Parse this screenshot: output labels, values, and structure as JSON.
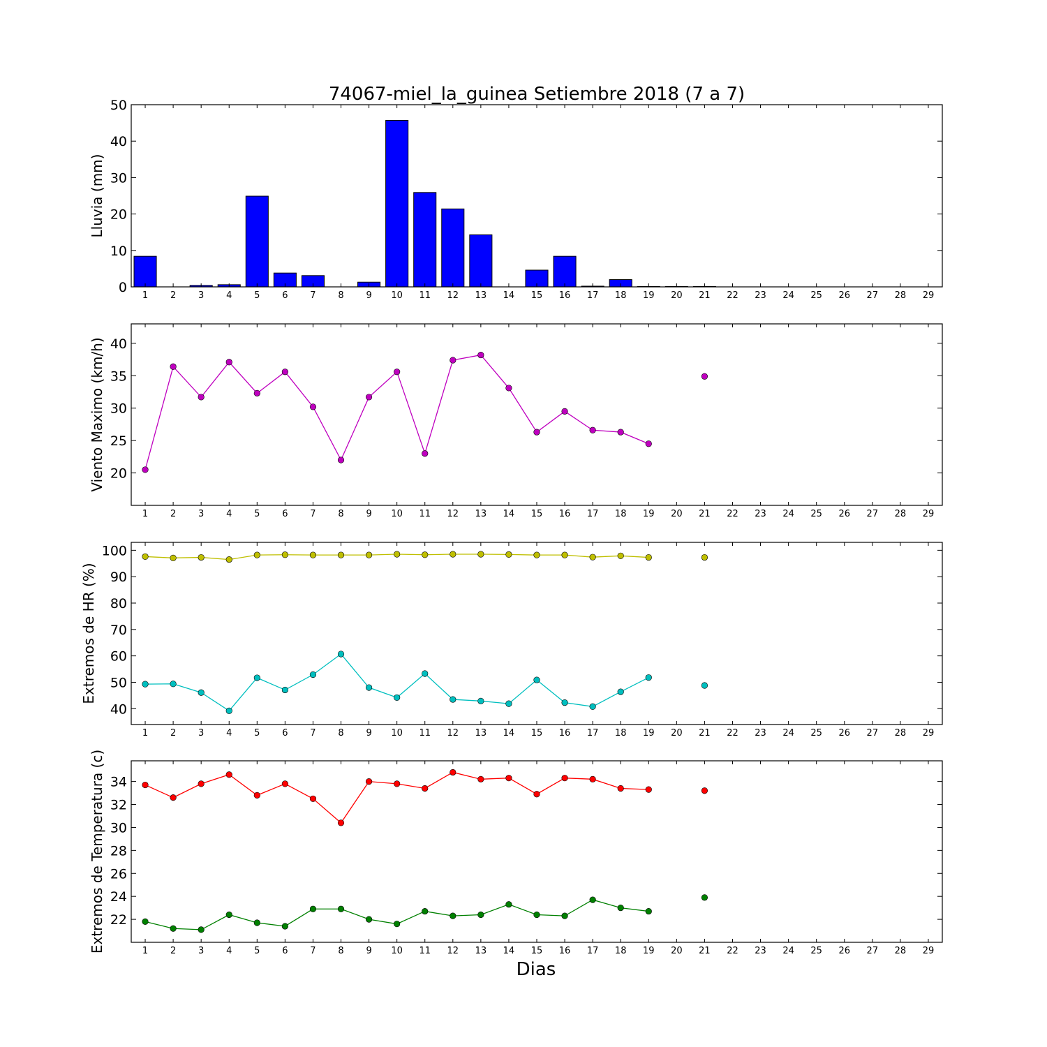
{
  "title": "74067-miel_la_guinea Setiembre 2018  (7 a 7)",
  "xlabel": "Dias",
  "chart_data": [
    {
      "type": "bar",
      "ylabel": "Lluvia (mm)",
      "ylim": [
        0,
        50
      ],
      "yticks": [
        0,
        10,
        20,
        30,
        40,
        50
      ],
      "xlim": [
        0.5,
        29.5
      ],
      "xticks": [
        1,
        2,
        3,
        4,
        5,
        6,
        7,
        8,
        9,
        10,
        11,
        12,
        13,
        14,
        15,
        16,
        17,
        18,
        19,
        20,
        21,
        22,
        23,
        24,
        25,
        26,
        27,
        28,
        29
      ],
      "x": [
        1,
        2,
        3,
        4,
        5,
        6,
        7,
        8,
        9,
        10,
        11,
        12,
        13,
        14,
        15,
        16,
        17,
        18,
        19,
        20,
        21
      ],
      "values": [
        8.4,
        0.0,
        0.4,
        0.6,
        24.9,
        3.8,
        3.1,
        0.0,
        1.3,
        45.7,
        25.9,
        21.4,
        14.3,
        0.0,
        4.6,
        8.4,
        0.2,
        2.0,
        0.1,
        0.1,
        0.1
      ],
      "color": "#0000ff",
      "grid": false
    },
    {
      "type": "line",
      "ylabel": "Viento Maximo (km/h)",
      "ylim": [
        15,
        43
      ],
      "yticks": [
        20,
        25,
        30,
        35,
        40
      ],
      "xlim": [
        0.5,
        29.5
      ],
      "xticks": [
        1,
        2,
        3,
        4,
        5,
        6,
        7,
        8,
        9,
        10,
        11,
        12,
        13,
        14,
        15,
        16,
        17,
        18,
        19,
        20,
        21,
        22,
        23,
        24,
        25,
        26,
        27,
        28,
        29
      ],
      "series": [
        {
          "color": "#bf00bf",
          "x": [
            1,
            2,
            3,
            4,
            5,
            6,
            7,
            8,
            9,
            10,
            11,
            12,
            13,
            14,
            15,
            16,
            17,
            18,
            19,
            21
          ],
          "values": [
            20.5,
            36.4,
            31.7,
            37.1,
            32.3,
            35.6,
            30.2,
            22.0,
            31.7,
            35.6,
            23.0,
            37.4,
            38.2,
            33.1,
            26.3,
            29.5,
            26.6,
            26.3,
            24.5,
            34.9
          ]
        }
      ],
      "grid": false
    },
    {
      "type": "line",
      "ylabel": "Extremos de HR (%)",
      "ylim": [
        34,
        103
      ],
      "yticks": [
        40,
        50,
        60,
        70,
        80,
        90,
        100
      ],
      "xlim": [
        0.5,
        29.5
      ],
      "xticks": [
        1,
        2,
        3,
        4,
        5,
        6,
        7,
        8,
        9,
        10,
        11,
        12,
        13,
        14,
        15,
        16,
        17,
        18,
        19,
        20,
        21,
        22,
        23,
        24,
        25,
        26,
        27,
        28,
        29
      ],
      "series": [
        {
          "color": "#bfbf00",
          "x": [
            1,
            2,
            3,
            4,
            5,
            6,
            7,
            8,
            9,
            10,
            11,
            12,
            13,
            14,
            15,
            16,
            17,
            18,
            19,
            21
          ],
          "values": [
            97.6,
            97.1,
            97.3,
            96.5,
            98.2,
            98.3,
            98.2,
            98.2,
            98.2,
            98.5,
            98.3,
            98.5,
            98.5,
            98.4,
            98.2,
            98.2,
            97.4,
            97.9,
            97.3,
            97.3
          ]
        },
        {
          "color": "#00bfbf",
          "x": [
            1,
            2,
            3,
            4,
            5,
            6,
            7,
            8,
            9,
            10,
            11,
            12,
            13,
            14,
            15,
            16,
            17,
            18,
            19,
            21
          ],
          "values": [
            49.3,
            49.4,
            46.1,
            39.2,
            51.7,
            47.1,
            52.9,
            60.7,
            48.0,
            44.2,
            53.3,
            43.5,
            42.9,
            41.9,
            50.9,
            42.3,
            40.8,
            46.4,
            51.8,
            48.8
          ]
        }
      ],
      "grid": false
    },
    {
      "type": "line",
      "ylabel": "Extremos de Temperatura (c)",
      "ylim": [
        20,
        35.8
      ],
      "yticks": [
        22,
        24,
        26,
        28,
        30,
        32,
        34
      ],
      "xlim": [
        0.5,
        29.5
      ],
      "xticks": [
        1,
        2,
        3,
        4,
        5,
        6,
        7,
        8,
        9,
        10,
        11,
        12,
        13,
        14,
        15,
        16,
        17,
        18,
        19,
        20,
        21,
        22,
        23,
        24,
        25,
        26,
        27,
        28,
        29
      ],
      "series": [
        {
          "color": "#ff0000",
          "x": [
            1,
            2,
            3,
            4,
            5,
            6,
            7,
            8,
            9,
            10,
            11,
            12,
            13,
            14,
            15,
            16,
            17,
            18,
            19,
            21
          ],
          "values": [
            33.7,
            32.6,
            33.8,
            34.6,
            32.8,
            33.8,
            32.5,
            30.4,
            34.0,
            33.8,
            33.4,
            34.8,
            34.2,
            34.3,
            32.9,
            34.3,
            34.2,
            33.4,
            33.3,
            33.2
          ]
        },
        {
          "color": "#008000",
          "x": [
            1,
            2,
            3,
            4,
            5,
            6,
            7,
            8,
            9,
            10,
            11,
            12,
            13,
            14,
            15,
            16,
            17,
            18,
            19,
            21
          ],
          "values": [
            21.8,
            21.2,
            21.1,
            22.4,
            21.7,
            21.4,
            22.9,
            22.9,
            22.0,
            21.6,
            22.7,
            22.3,
            22.4,
            23.3,
            22.4,
            22.3,
            23.7,
            23.0,
            22.7,
            23.9
          ]
        }
      ],
      "grid": false
    }
  ]
}
